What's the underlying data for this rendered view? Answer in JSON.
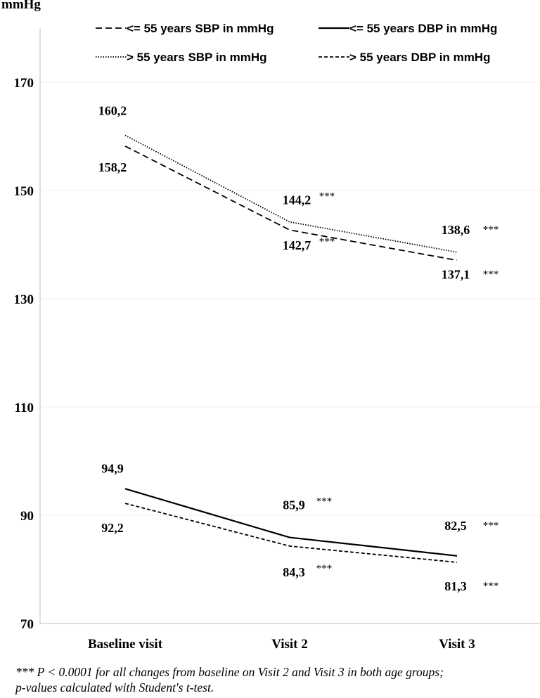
{
  "chart_data": {
    "type": "line",
    "ylabel": "mmHg",
    "ylim": [
      70,
      180
    ],
    "yticks": [
      70,
      90,
      110,
      130,
      150,
      170
    ],
    "categories": [
      "Baseline visit",
      "Visit 2",
      "Visit 3"
    ],
    "significance_marker": "***",
    "series": [
      {
        "key": "young_sbp",
        "name": "<= 55 years SBP in mmHg",
        "style": "dashed",
        "values": [
          158.2,
          142.7,
          137.1
        ],
        "labels": [
          "158,2",
          "142,7",
          "137,1"
        ],
        "significant": [
          false,
          true,
          true
        ]
      },
      {
        "key": "young_dbp",
        "name": "<= 55 years DBP in mmHg",
        "style": "solid",
        "values": [
          94.9,
          85.9,
          82.5
        ],
        "labels": [
          "94,9",
          "85,9",
          "82,5"
        ],
        "significant": [
          false,
          true,
          true
        ]
      },
      {
        "key": "old_sbp",
        "name": "> 55 years SBP in mmHg",
        "style": "dotted",
        "values": [
          160.2,
          144.2,
          138.6
        ],
        "labels": [
          "160,2",
          "144,2",
          "138,6"
        ],
        "significant": [
          false,
          true,
          true
        ]
      },
      {
        "key": "old_dbp",
        "name": "> 55 years DBP in mmHg",
        "style": "short-dashed",
        "values": [
          92.2,
          84.3,
          81.3
        ],
        "labels": [
          "92,2",
          "84,3",
          "81,3"
        ],
        "significant": [
          false,
          true,
          true
        ]
      }
    ]
  },
  "footnote": {
    "line1": "*** P < 0.0001 for all changes from baseline on Visit 2 and Visit 3 in both age groups;",
    "line2": "p-values calculated  with Student's t-test."
  }
}
